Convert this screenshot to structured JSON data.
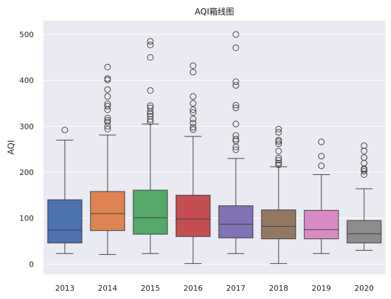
{
  "chart_data": {
    "type": "box",
    "title": "AQI箱线图",
    "xlabel": "",
    "ylabel": "AQI",
    "ylim": [
      -22,
      530
    ],
    "yticks": [
      0,
      100,
      200,
      300,
      400,
      500
    ],
    "grid": true,
    "categories": [
      "2013",
      "2014",
      "2015",
      "2016",
      "2017",
      "2018",
      "2019",
      "2020"
    ],
    "colors": [
      "#4c72b0",
      "#dd8452",
      "#55a868",
      "#c44e52",
      "#8172b3",
      "#937860",
      "#da8bc3",
      "#8c8c8c"
    ],
    "boxes": [
      {
        "min": 23,
        "q1": 46,
        "median": 74,
        "q3": 140,
        "max": 270,
        "outliers": [
          292
        ]
      },
      {
        "min": 21,
        "q1": 73,
        "median": 110,
        "q3": 158,
        "max": 281,
        "outliers": [
          294,
          300,
          309,
          313,
          318,
          336,
          344,
          349,
          365,
          380,
          401,
          404,
          429
        ]
      },
      {
        "min": 23,
        "q1": 65,
        "median": 101,
        "q3": 161,
        "max": 305,
        "outliers": [
          310,
          315,
          322,
          327,
          332,
          340,
          345,
          378,
          450,
          477,
          485
        ]
      },
      {
        "min": 1,
        "q1": 60,
        "median": 98,
        "q3": 150,
        "max": 278,
        "outliers": [
          293,
          298,
          307,
          316,
          330,
          336,
          350,
          365,
          418,
          432
        ]
      },
      {
        "min": 23,
        "q1": 57,
        "median": 87,
        "q3": 127,
        "max": 230,
        "outliers": [
          249,
          255,
          268,
          272,
          280,
          305,
          340,
          346,
          389,
          397,
          471,
          500
        ]
      },
      {
        "min": 1,
        "q1": 55,
        "median": 82,
        "q3": 118,
        "max": 212,
        "outliers": [
          216,
          220,
          226,
          231,
          246,
          262,
          267,
          270,
          287,
          294
        ]
      },
      {
        "min": 23,
        "q1": 55,
        "median": 75,
        "q3": 117,
        "max": 195,
        "outliers": [
          214,
          235,
          266
        ]
      },
      {
        "min": 30,
        "q1": 46,
        "median": 66,
        "q3": 95,
        "max": 164,
        "outliers": [
          195,
          202,
          206,
          208,
          220,
          232,
          246,
          258
        ]
      }
    ]
  }
}
